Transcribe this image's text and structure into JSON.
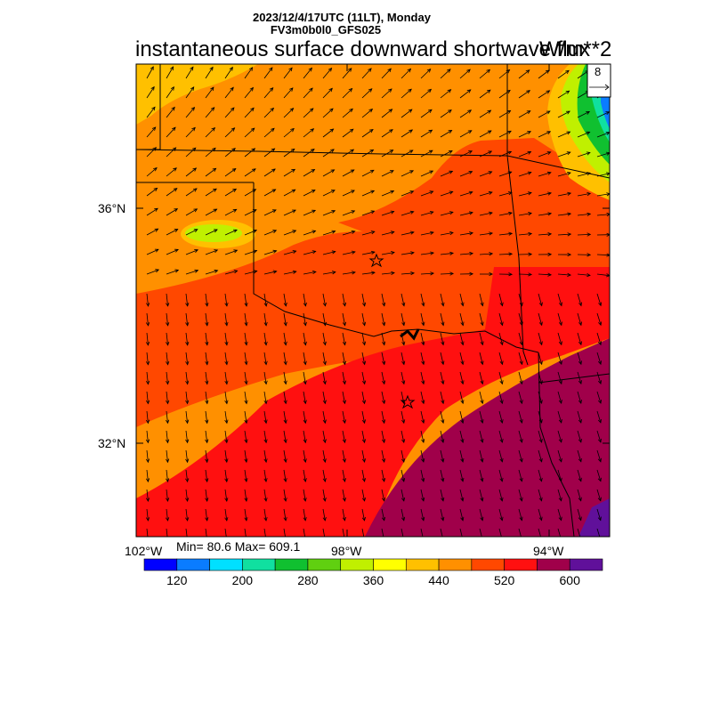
{
  "header": {
    "datetime": "2023/12/4/17UTC (11LT), Monday",
    "model": "FV3m0b0l0_GFS025",
    "title": "instantaneous surface downward shortwave flux",
    "units": "W/m**2"
  },
  "vector_reference": {
    "value": "8"
  },
  "axes": {
    "lat_labels": [
      "36°N",
      "32°N"
    ],
    "lon_labels": [
      "102°W",
      "98°W",
      "94°W"
    ]
  },
  "stats": {
    "text": "Min= 80.6 Max= 609.1",
    "min": 80.6,
    "max": 609.1
  },
  "colorbar": {
    "colors": [
      "#0000ff",
      "#0a7cff",
      "#00e0ff",
      "#10e0a0",
      "#10c030",
      "#60d010",
      "#c0f000",
      "#ffff00",
      "#ffc000",
      "#ff9000",
      "#ff4800",
      "#ff1010",
      "#a0004a",
      "#60109a"
    ],
    "labels": [
      "120",
      "200",
      "280",
      "360",
      "440",
      "520",
      "600"
    ]
  },
  "markers": [
    {
      "name": "oklahoma-city-star"
    },
    {
      "name": "dallas-star"
    }
  ]
}
